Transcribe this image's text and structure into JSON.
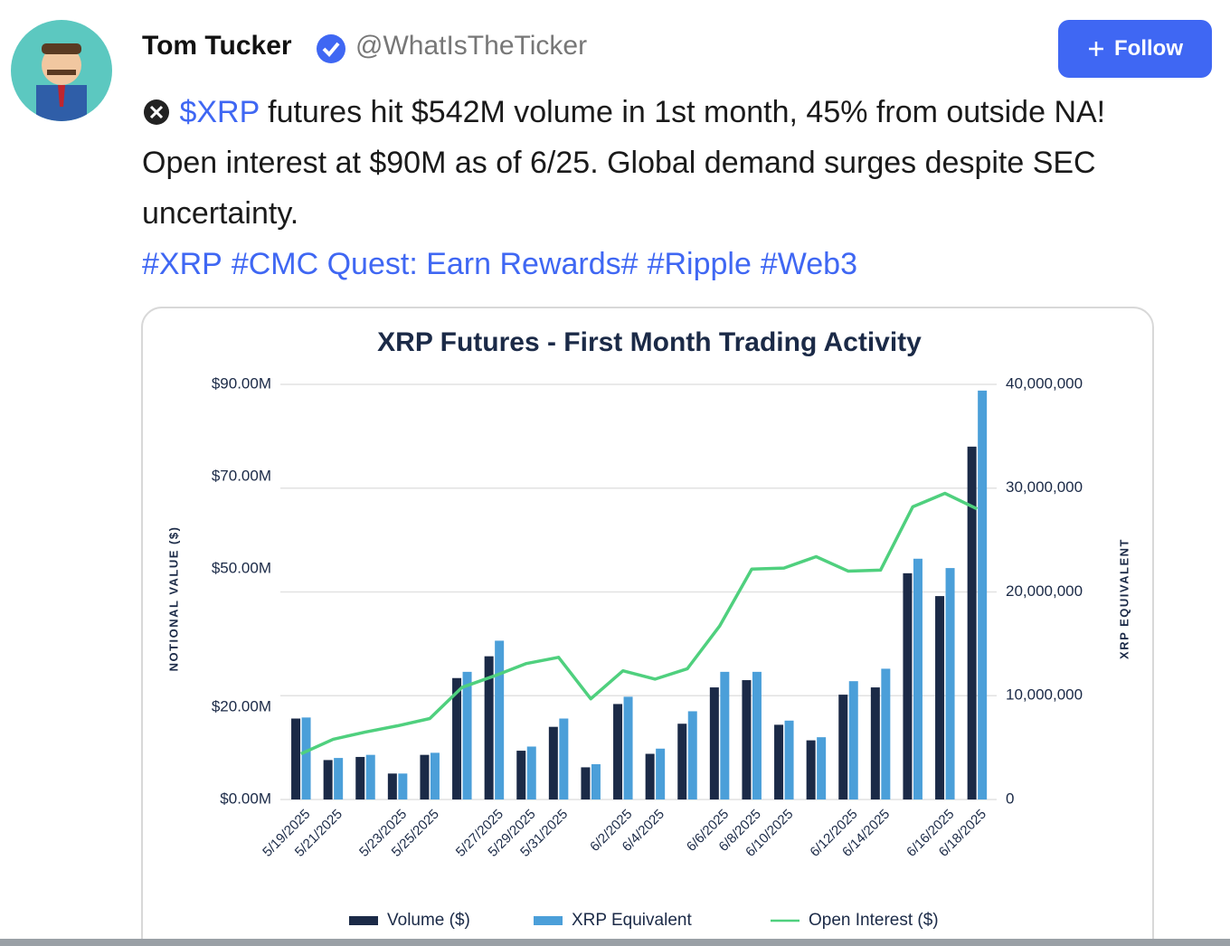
{
  "post": {
    "author": {
      "name": "Tom Tucker",
      "handle": "@WhatIsTheTicker"
    },
    "follow_button": "Follow",
    "cashtag": "$XRP",
    "text": "futures hit $542M volume in 1st month, 45% from outside NA! Open interest at $90M as of 6/25. Global demand surges despite SEC uncertainty.",
    "hashtags": [
      "#XRP",
      "#CMC Quest: Earn Rewards#",
      "#Ripple",
      "#Web3"
    ]
  },
  "chart_data": {
    "type": "bar",
    "title": "XRP Futures - First Month Trading Activity",
    "ylabel": "NOTIONAL VALUE ($)",
    "y2label": "XRP EQUIVALENT",
    "categories": [
      "5/19/2025",
      "5/21/2025",
      null,
      "5/23/2025",
      "5/25/2025",
      null,
      "5/27/2025",
      "5/29/2025",
      "5/31/2025",
      null,
      "6/2/2025",
      "6/4/2025",
      null,
      "6/6/2025",
      "6/8/2025",
      "6/10/2025",
      null,
      "6/12/2025",
      "6/14/2025",
      null,
      "6/16/2025",
      "6/18/2025"
    ],
    "ylim": [
      0,
      90
    ],
    "yticks": [
      {
        "value": 0,
        "label": "$0.00M"
      },
      {
        "value": 20,
        "label": "$20.00M"
      },
      {
        "value": 50,
        "label": "$50.00M"
      },
      {
        "value": 70,
        "label": "$70.00M"
      },
      {
        "value": 90,
        "label": "$90.00M"
      }
    ],
    "y2lim": [
      0,
      40000000
    ],
    "y2ticks": [
      0,
      {
        "value": 10000000,
        "label": "10,000,000"
      },
      {
        "value": 20000000,
        "label": "20,000,000"
      },
      {
        "value": 30000000,
        "label": "30,000,000"
      },
      {
        "value": 40000000,
        "label": "40,000,000"
      }
    ],
    "grid": true,
    "series": [
      {
        "name": "Volume ($)",
        "type": "bar",
        "axis": "y2",
        "color": "#1b2a47",
        "values": [
          7800000,
          3800000,
          4100000,
          2500000,
          4300000,
          11700000,
          13800000,
          4700000,
          7000000,
          3100000,
          9200000,
          4400000,
          7300000,
          10800000,
          11500000,
          7200000,
          5700000,
          10100000,
          10800000,
          21800000,
          19600000,
          34000000
        ]
      },
      {
        "name": "XRP Equivalent",
        "type": "bar",
        "axis": "y2",
        "color": "#4b9fd9",
        "values": [
          7900000,
          4000000,
          4300000,
          2500000,
          4500000,
          12300000,
          15300000,
          5100000,
          7800000,
          3400000,
          9900000,
          4900000,
          8500000,
          12300000,
          12300000,
          7600000,
          6000000,
          11400000,
          12600000,
          23200000,
          22300000,
          39400000
        ]
      },
      {
        "name": "Open Interest ($)",
        "type": "line",
        "axis": "y2",
        "color": "#4fd07e",
        "values": [
          4400000,
          5800000,
          6500000,
          7100000,
          7800000,
          10800000,
          11900000,
          13100000,
          13700000,
          9700000,
          12400000,
          11600000,
          12600000,
          16700000,
          22200000,
          22300000,
          23400000,
          22000000,
          22100000,
          28200000,
          29500000,
          28000000
        ]
      }
    ]
  }
}
